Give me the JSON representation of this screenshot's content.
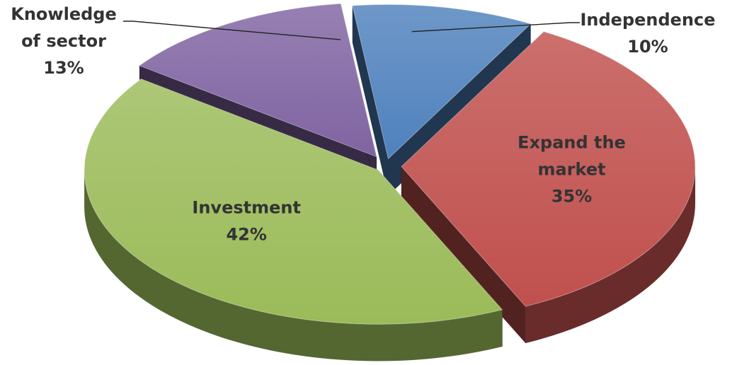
{
  "chart_data": {
    "type": "pie",
    "style": "3d-exploded",
    "title": "",
    "categories": [
      "Independence",
      "Expand the market",
      "Investment",
      "Knowledge of sector"
    ],
    "values": [
      10,
      35,
      42,
      13
    ],
    "slices": [
      {
        "name": "Independence",
        "value": 10,
        "label_lines": [
          "Independence"
        ],
        "value_label": "10%",
        "color": "#4F81BD",
        "label_position": "outside-top-right"
      },
      {
        "name": "Expand the market",
        "value": 35,
        "label_lines": [
          "Expand the",
          "market"
        ],
        "value_label": "35%",
        "color": "#C0504D",
        "label_position": "inside"
      },
      {
        "name": "Investment",
        "value": 42,
        "label_lines": [
          "Investment"
        ],
        "value_label": "42%",
        "color": "#9BBB59",
        "label_position": "inside"
      },
      {
        "name": "Knowledge of sector",
        "value": 13,
        "label_lines": [
          "Knowledge",
          "of sector"
        ],
        "value_label": "13%",
        "color": "#8064A2",
        "label_position": "outside-top-left"
      }
    ],
    "legend": "none",
    "label_color": "#333333"
  }
}
